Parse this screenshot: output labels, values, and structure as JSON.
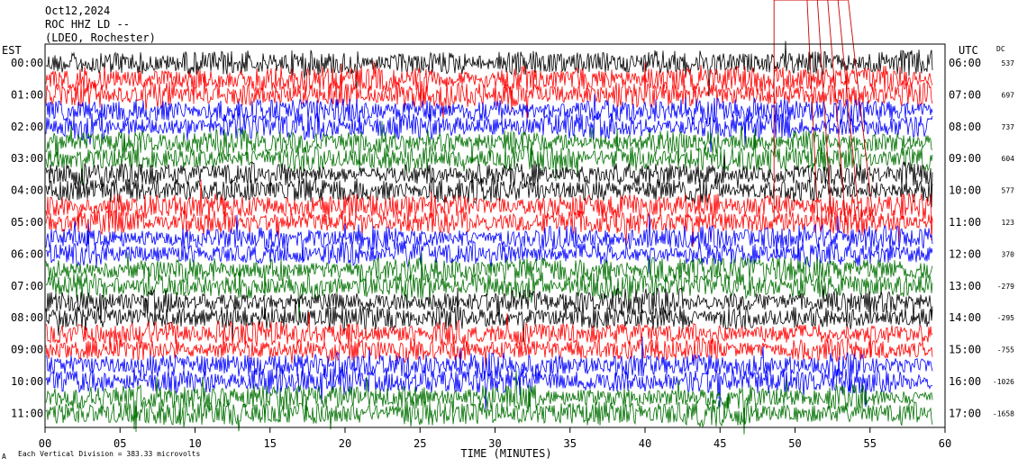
{
  "header": {
    "date": "Oct12,2024",
    "station": "ROC HHZ LD --",
    "location": "(LDEO, Rochester)"
  },
  "left_axis_title": "EST",
  "right_axis_title": "UTC",
  "dc_title": "DC",
  "footer": {
    "scale_prefix": "A",
    "scale_text": "Each Vertical Division =  383.33 microvolts"
  },
  "colors": {
    "cycle": [
      "#000000",
      "#ff0000",
      "#0000ff",
      "#007000"
    ],
    "event_line": "#cc0000",
    "frame": "#000000",
    "background": "#ffffff"
  },
  "chart_data": {
    "type": "line",
    "title": "",
    "xlabel": "TIME (MINUTES)",
    "ylabel": "",
    "xlim": [
      0,
      60
    ],
    "x_ticks": [
      "00",
      "05",
      "10",
      "15",
      "20",
      "25",
      "30",
      "35",
      "40",
      "45",
      "50",
      "55",
      "60"
    ],
    "grid": true,
    "series": [
      {
        "est": "00:00",
        "utc": "06:00",
        "dc": "537",
        "color": "#000000"
      },
      {
        "est": "",
        "utc": "",
        "dc": "",
        "color": "#ff0000"
      },
      {
        "est": "01:00",
        "utc": "07:00",
        "dc": "697",
        "color": "#ff0000"
      },
      {
        "est": "",
        "utc": "",
        "dc": "",
        "color": "#0000ff"
      },
      {
        "est": "02:00",
        "utc": "08:00",
        "dc": "737",
        "color": "#0000ff"
      },
      {
        "est": "",
        "utc": "",
        "dc": "",
        "color": "#007000"
      },
      {
        "est": "03:00",
        "utc": "09:00",
        "dc": "604",
        "color": "#007000"
      },
      {
        "est": "",
        "utc": "",
        "dc": "",
        "color": "#000000"
      },
      {
        "est": "04:00",
        "utc": "10:00",
        "dc": "577",
        "color": "#000000"
      },
      {
        "est": "",
        "utc": "",
        "dc": "",
        "color": "#ff0000"
      },
      {
        "est": "05:00",
        "utc": "11:00",
        "dc": "123",
        "color": "#ff0000"
      },
      {
        "est": "",
        "utc": "",
        "dc": "",
        "color": "#0000ff"
      },
      {
        "est": "06:00",
        "utc": "12:00",
        "dc": "370",
        "color": "#0000ff"
      },
      {
        "est": "",
        "utc": "",
        "dc": "",
        "color": "#007000"
      },
      {
        "est": "07:00",
        "utc": "13:00",
        "dc": "-279",
        "color": "#007000"
      },
      {
        "est": "",
        "utc": "",
        "dc": "",
        "color": "#000000"
      },
      {
        "est": "08:00",
        "utc": "14:00",
        "dc": "-295",
        "color": "#000000"
      },
      {
        "est": "",
        "utc": "",
        "dc": "",
        "color": "#ff0000"
      },
      {
        "est": "09:00",
        "utc": "15:00",
        "dc": "-755",
        "color": "#ff0000"
      },
      {
        "est": "",
        "utc": "",
        "dc": "",
        "color": "#0000ff"
      },
      {
        "est": "10:00",
        "utc": "16:00",
        "dc": "-1026",
        "color": "#0000ff"
      },
      {
        "est": "",
        "utc": "",
        "dc": "",
        "color": "#007000"
      },
      {
        "est": "11:00",
        "utc": "17:00",
        "dc": "-1658",
        "color": "#007000"
      }
    ],
    "annotations": [
      {
        "type": "event-marker-box",
        "x_minutes": [
          48.6,
          53.5
        ],
        "row_start": 0,
        "row_end": 10
      }
    ]
  }
}
